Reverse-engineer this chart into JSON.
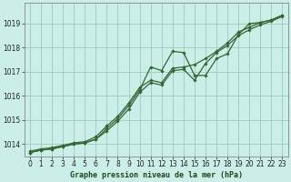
{
  "title": "Graphe pression niveau de la mer (hPa)",
  "bg_color": "#cceee8",
  "grid_color": "#99ccbb",
  "line_color": "#336633",
  "x": [
    0,
    1,
    2,
    3,
    4,
    5,
    6,
    7,
    8,
    9,
    10,
    11,
    12,
    13,
    14,
    15,
    16,
    17,
    18,
    19,
    20,
    21,
    22,
    23
  ],
  "y_line1": [
    1013.7,
    1013.8,
    1013.85,
    1013.95,
    1014.05,
    1014.1,
    1014.3,
    1014.75,
    1015.15,
    1015.7,
    1016.35,
    1016.65,
    1016.55,
    1017.15,
    1017.2,
    1017.3,
    1017.55,
    1017.85,
    1018.2,
    1018.65,
    1018.85,
    1019.05,
    1019.15,
    1019.35
  ],
  "y_line2": [
    1013.65,
    1013.75,
    1013.8,
    1013.9,
    1014.0,
    1014.05,
    1014.2,
    1014.65,
    1015.05,
    1015.6,
    1016.25,
    1017.2,
    1017.05,
    1017.85,
    1017.8,
    1016.85,
    1016.85,
    1017.55,
    1017.75,
    1018.55,
    1019.0,
    1019.05,
    1019.15,
    1019.35
  ],
  "y_line3": [
    1013.65,
    1013.75,
    1013.8,
    1013.9,
    1014.0,
    1014.05,
    1014.2,
    1014.55,
    1014.95,
    1015.45,
    1016.15,
    1016.55,
    1016.45,
    1017.05,
    1017.1,
    1016.65,
    1017.35,
    1017.8,
    1018.1,
    1018.5,
    1018.75,
    1018.95,
    1019.1,
    1019.3
  ],
  "ylim": [
    1013.5,
    1019.85
  ],
  "yticks": [
    1014,
    1015,
    1016,
    1017,
    1018,
    1019
  ],
  "xlim": [
    -0.5,
    23.5
  ],
  "xticks": [
    0,
    1,
    2,
    3,
    4,
    5,
    6,
    7,
    8,
    9,
    10,
    11,
    12,
    13,
    14,
    15,
    16,
    17,
    18,
    19,
    20,
    21,
    22,
    23
  ],
  "marker_size": 1.8,
  "line_width": 0.9,
  "tick_fontsize": 5.5,
  "xlabel_fontsize": 6.0
}
